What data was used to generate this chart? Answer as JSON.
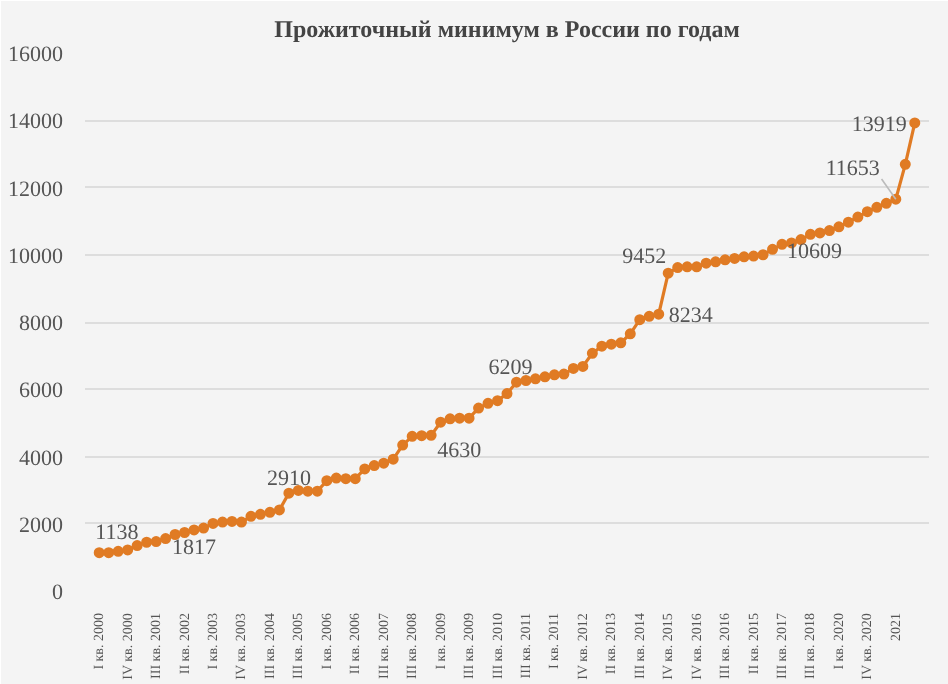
{
  "chart_data": {
    "type": "line",
    "title": "Прожиточный минимум в России по годам",
    "categories": [
      "I кв. 2000",
      null,
      null,
      "IV кв. 2000",
      null,
      null,
      "III кв. 2001",
      null,
      null,
      "II кв. 2002",
      null,
      null,
      "I кв. 2003",
      null,
      null,
      "IV кв. 2003",
      null,
      null,
      "III кв. 2004",
      null,
      null,
      "III кв. 2005",
      null,
      null,
      "I кв. 2006",
      null,
      null,
      "II кв. 2006",
      null,
      null,
      "III кв. 2007",
      null,
      null,
      "III кв. 2008",
      null,
      null,
      "I кв. 2009",
      null,
      null,
      "III кв. 2009",
      null,
      null,
      "III кв. 2010",
      null,
      null,
      "III кв. 2011",
      null,
      null,
      "I кв. 2011",
      null,
      null,
      "IV кв. 2012",
      null,
      null,
      "II кв. 2013",
      null,
      null,
      "III кв. 2014",
      null,
      null,
      "IV кв. 2015",
      null,
      null,
      "IV кв. 2016",
      null,
      null,
      "III кв. 2016",
      null,
      null,
      "II кв. 2015",
      null,
      null,
      "III кв. 2017",
      null,
      null,
      "III кв. 2018",
      null,
      null,
      "I кв. 2020",
      null,
      null,
      "IV кв. 2020",
      null,
      null,
      "2021",
      null,
      null
    ],
    "series": [
      {
        "color": "#e07b24",
        "values": [
          1138,
          1140,
          1180,
          1220,
          1350,
          1450,
          1470,
          1560,
          1680,
          1740,
          1817,
          1870,
          2010,
          2050,
          2070,
          2050,
          2220,
          2280,
          2340,
          2410,
          2910,
          2990,
          2970,
          2970,
          3280,
          3360,
          3340,
          3340,
          3630,
          3730,
          3800,
          3920,
          4340,
          4600,
          4620,
          4630,
          5020,
          5120,
          5140,
          5140,
          5440,
          5580,
          5660,
          5870,
          6209,
          6260,
          6310,
          6370,
          6430,
          6450,
          6620,
          6680,
          7070,
          7280,
          7340,
          7380,
          7650,
          8070,
          8170,
          8234,
          9452,
          9620,
          9640,
          9640,
          9750,
          9790,
          9850,
          9890,
          9940,
          9960,
          10000,
          10160,
          10310,
          10350,
          10450,
          10609,
          10650,
          10720,
          10830,
          10970,
          11120,
          11280,
          11410,
          11530,
          11653,
          12690,
          13919
        ],
        "value_labels": [
          "1138",
          null,
          null,
          null,
          null,
          null,
          null,
          null,
          null,
          null,
          "1817",
          null,
          null,
          null,
          null,
          null,
          null,
          null,
          null,
          null,
          "2910",
          null,
          null,
          null,
          null,
          null,
          null,
          null,
          null,
          null,
          null,
          null,
          null,
          null,
          null,
          "4630",
          null,
          null,
          null,
          null,
          null,
          null,
          null,
          null,
          "6209",
          null,
          null,
          null,
          null,
          null,
          null,
          null,
          null,
          null,
          null,
          null,
          null,
          null,
          null,
          "8234",
          "9452",
          null,
          null,
          null,
          null,
          null,
          null,
          null,
          null,
          null,
          null,
          null,
          null,
          null,
          null,
          "10609",
          null,
          null,
          null,
          null,
          null,
          null,
          null,
          null,
          "11653",
          null,
          "13919"
        ]
      }
    ],
    "ylim": [
      0,
      16000
    ],
    "yticks": [
      0,
      2000,
      4000,
      6000,
      8000,
      10000,
      12000,
      14000,
      16000
    ],
    "grid": "y",
    "marker": "circle",
    "line_style": "solid"
  }
}
